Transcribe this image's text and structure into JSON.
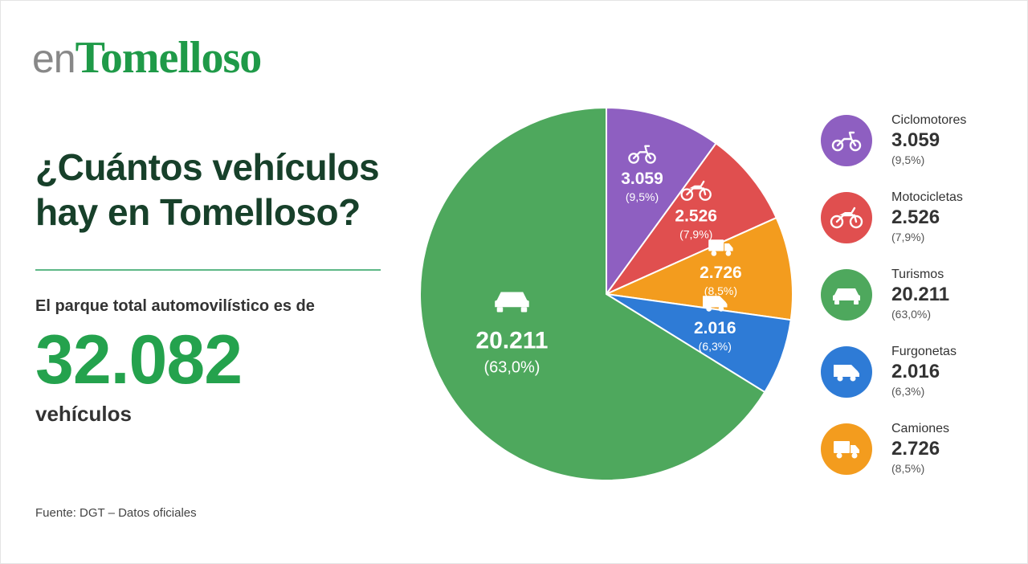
{
  "brand": {
    "prefix": "en",
    "name": "Tomelloso"
  },
  "headline": {
    "line1": "¿Cuántos vehículos",
    "line2": "hay en Tomelloso?"
  },
  "summary": {
    "label": "El parque total automovilístico es de",
    "total": "32.082",
    "unit": "vehículos"
  },
  "source": "Fuente: DGT – Datos oficiales",
  "colors": {
    "accent": "#24a24d",
    "ciclomotores": "#8e5fc1",
    "motocicletas": "#e04f4f",
    "camiones": "#f39c1e",
    "furgonetas": "#2e7bd6",
    "turismos": "#4ea85d"
  },
  "chart_data": {
    "type": "pie",
    "slices": [
      {
        "name": "Ciclomotores",
        "value": 3059,
        "value_label": "3.059",
        "percent_label": "(9,5%)",
        "color": "#8e5fc1",
        "icon": "moped-icon"
      },
      {
        "name": "Motocicletas",
        "value": 2526,
        "value_label": "2.526",
        "percent_label": "(7,9%)",
        "color": "#e04f4f",
        "icon": "motorcycle-icon"
      },
      {
        "name": "Camiones",
        "value": 2726,
        "value_label": "2.726",
        "percent_label": "(8,5%)",
        "color": "#f39c1e",
        "icon": "truck-icon"
      },
      {
        "name": "Furgonetas",
        "value": 2016,
        "value_label": "2.016",
        "percent_label": "(6,3%)",
        "color": "#2e7bd6",
        "icon": "van-icon"
      },
      {
        "name": "Turismos",
        "value": 20211,
        "value_label": "20.211",
        "percent_label": "(63,0%)",
        "color": "#4ea85d",
        "icon": "car-icon"
      }
    ]
  },
  "legend": [
    {
      "name": "Ciclomotores",
      "value": "3.059",
      "percent": "(9,5%)",
      "color": "#8e5fc1",
      "icon": "moped-icon"
    },
    {
      "name": "Motocicletas",
      "value": "2.526",
      "percent": "(7,9%)",
      "color": "#e04f4f",
      "icon": "motorcycle-icon"
    },
    {
      "name": "Turismos",
      "value": "20.211",
      "percent": "(63,0%)",
      "color": "#4ea85d",
      "icon": "car-icon"
    },
    {
      "name": "Furgonetas",
      "value": "2.016",
      "percent": "(6,3%)",
      "color": "#2e7bd6",
      "icon": "van-icon"
    },
    {
      "name": "Camiones",
      "value": "2.726",
      "percent": "(8,5%)",
      "color": "#f39c1e",
      "icon": "truck-icon"
    }
  ]
}
